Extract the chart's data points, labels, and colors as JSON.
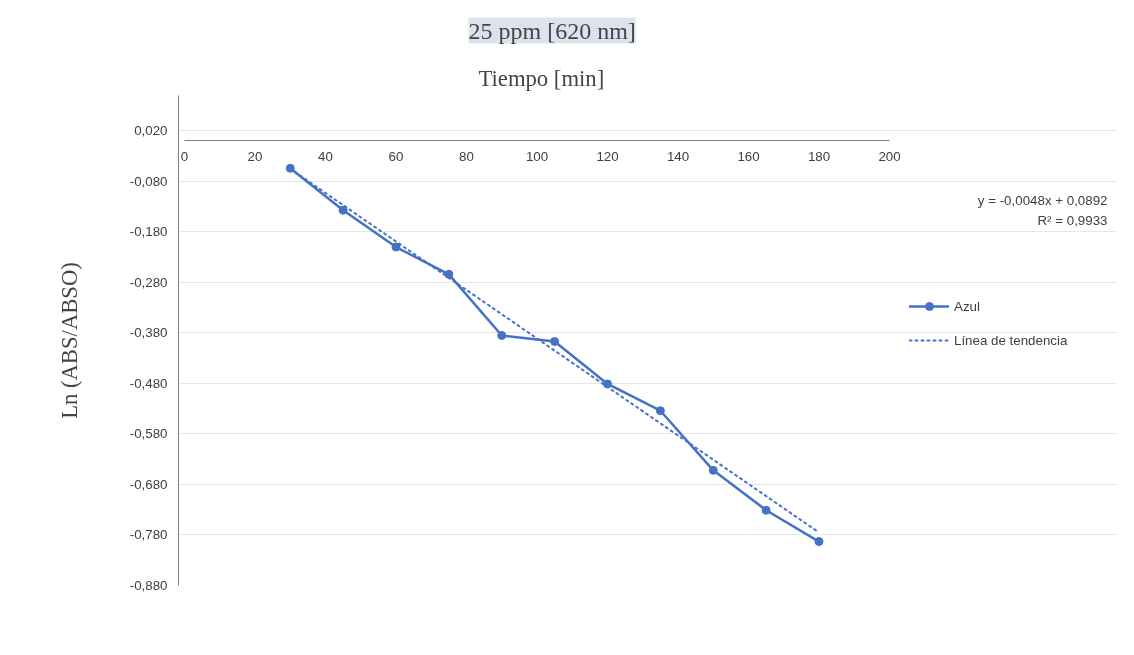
{
  "chart_data": {
    "type": "line",
    "title": "25 ppm [620 nm]",
    "xlabel": "Tiempo [min]",
    "ylabel": "Ln (ABS/ABSO)",
    "x": [
      30,
      45,
      60,
      75,
      90,
      105,
      120,
      135,
      150,
      165,
      180
    ],
    "series": [
      {
        "name": "Azul",
        "color": "#4472c4",
        "values": [
          -0.054,
          -0.137,
          -0.21,
          -0.264,
          -0.385,
          -0.397,
          -0.481,
          -0.534,
          -0.652,
          -0.731,
          -0.793
        ],
        "marker": "circle",
        "line_style": "solid"
      },
      {
        "name": "Línea de tendencia",
        "type": "line",
        "color": "#4472c4",
        "x": [
          30,
          180
        ],
        "values": [
          -0.055,
          -0.775
        ],
        "marker": "none",
        "line_style": "dotted"
      }
    ],
    "annotations": [
      "y = -0,0048x + 0,0892",
      "R² = 0,9933"
    ],
    "xlim": [
      0,
      200
    ],
    "xticks": [
      0,
      20,
      40,
      60,
      80,
      100,
      120,
      140,
      160,
      180,
      200
    ],
    "ylim": [
      -0.88,
      0.09
    ],
    "yticks": [
      {
        "value": 0.02,
        "label": "0,020"
      },
      {
        "value": -0.08,
        "label": "-0,080"
      },
      {
        "value": -0.18,
        "label": "-0,180"
      },
      {
        "value": -0.28,
        "label": "-0,280"
      },
      {
        "value": -0.38,
        "label": "-0,380"
      },
      {
        "value": -0.48,
        "label": "-0,480"
      },
      {
        "value": -0.58,
        "label": "-0,580"
      },
      {
        "value": -0.68,
        "label": "-0,680"
      },
      {
        "value": -0.78,
        "label": "-0,780"
      },
      {
        "value": -0.88,
        "label": "-0,880"
      }
    ],
    "grid": "y",
    "legend": "right"
  }
}
